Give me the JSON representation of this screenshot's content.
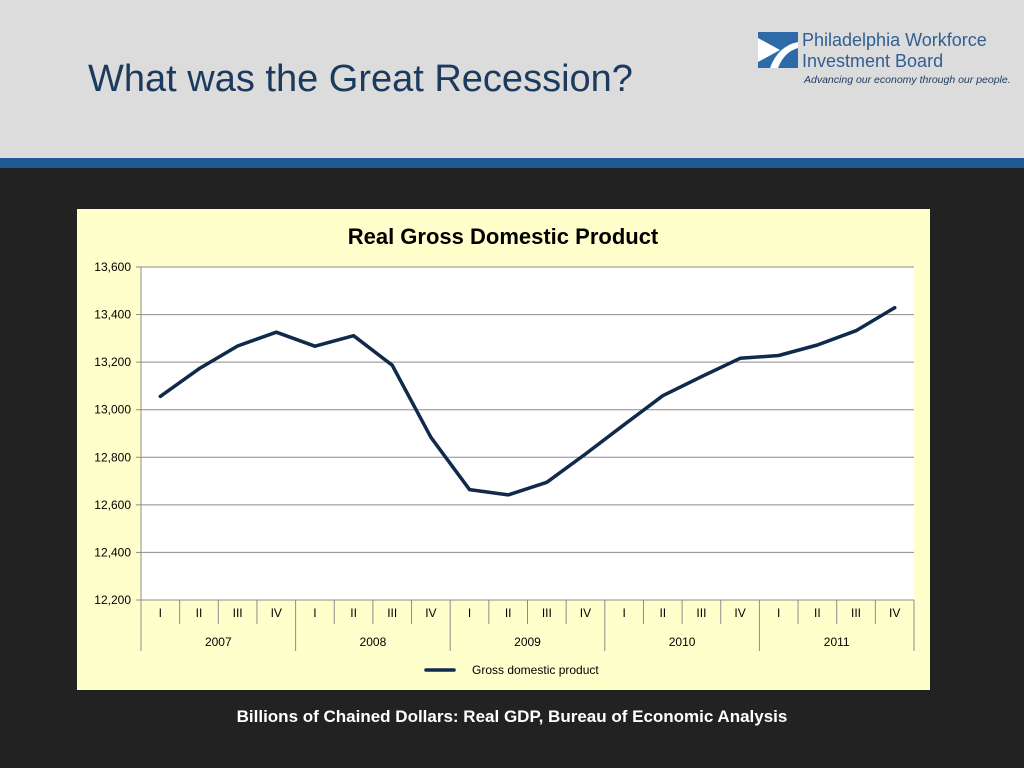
{
  "slide": {
    "title": "What was the Great Recession?",
    "caption": "Billions of Chained Dollars: Real GDP, Bureau of Economic Analysis"
  },
  "logo": {
    "name_line1": "Philadelphia Workforce",
    "name_line2": "Investment Board",
    "tagline": "Advancing our economy through our people."
  },
  "colors": {
    "header_bg": "#dcdcdc",
    "accent_bar": "#1f5a96",
    "slide_bg": "#222222",
    "chart_bg": "#ffffcc",
    "plot_bg": "#ffffff",
    "series_line": "#0f2a4a",
    "title_text": "#1c3a5e"
  },
  "chart_data": {
    "type": "line",
    "title": "Real Gross Domestic Product",
    "xlabel": "",
    "ylabel": "",
    "ylim": [
      12200,
      13600
    ],
    "y_ticks": [
      12200,
      12400,
      12600,
      12800,
      13000,
      13200,
      13400,
      13600
    ],
    "y_tick_labels": [
      "12,200",
      "12,400",
      "12,600",
      "12,800",
      "13,000",
      "13,200",
      "13,400",
      "13,600"
    ],
    "grid": true,
    "legend_position": "bottom",
    "categories": [
      "I",
      "II",
      "III",
      "IV",
      "I",
      "II",
      "III",
      "IV",
      "I",
      "II",
      "III",
      "IV",
      "I",
      "II",
      "III",
      "IV",
      "I",
      "II",
      "III",
      "IV"
    ],
    "groups": [
      {
        "label": "2007",
        "count": 4
      },
      {
        "label": "2008",
        "count": 4
      },
      {
        "label": "2009",
        "count": 4
      },
      {
        "label": "2010",
        "count": 4
      },
      {
        "label": "2011",
        "count": 4
      }
    ],
    "series": [
      {
        "name": "Gross domestic product",
        "values": [
          13056,
          13172,
          13268,
          13326,
          13267,
          13311,
          13187,
          12884,
          12664,
          12642,
          12695,
          12814,
          12937,
          13059,
          13139,
          13216,
          13228,
          13272,
          13332,
          13429
        ]
      }
    ]
  }
}
